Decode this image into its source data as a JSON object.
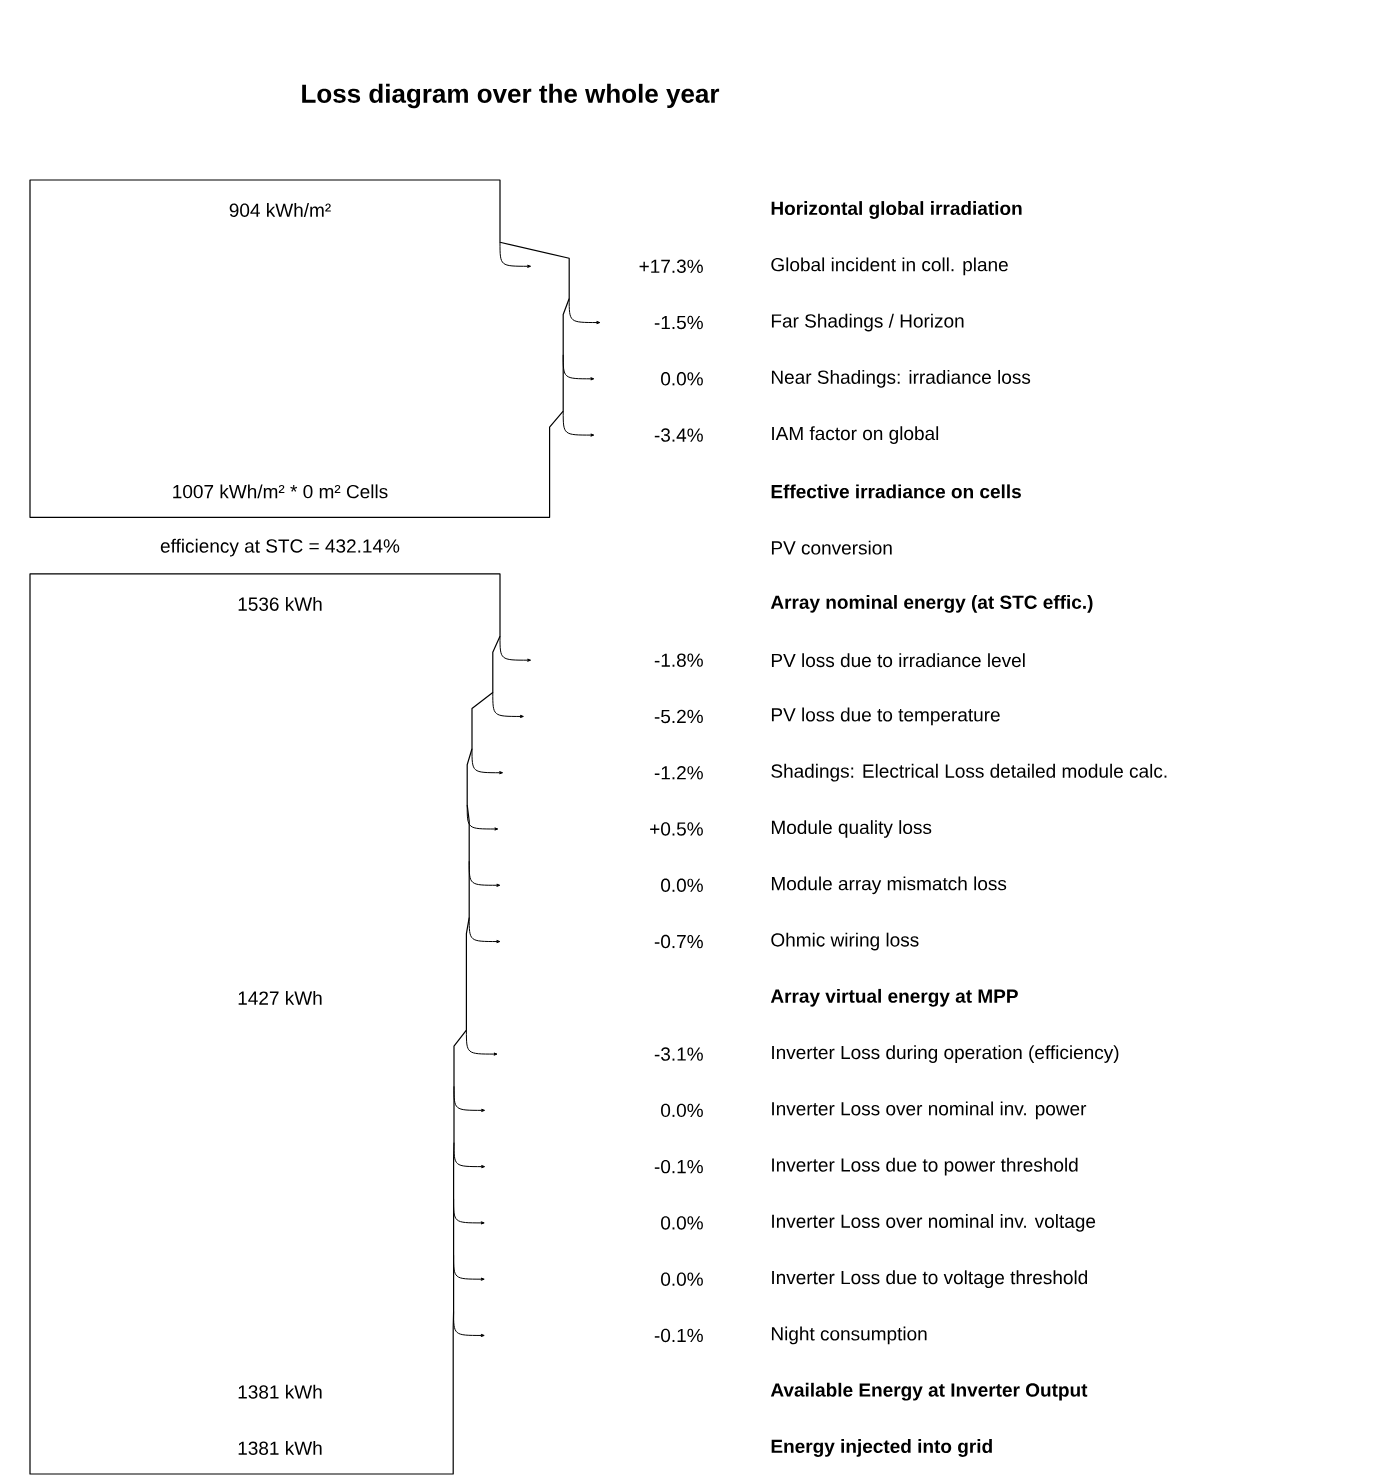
{
  "chart_data": {
    "type": "other",
    "title": "Loss diagram over the whole year",
    "categories": [
      "Horizontal global irradiation",
      "Global incident in coll. plane",
      "Far Shadings / Horizon",
      "Near Shadings: irradiance loss",
      "IAM factor on global",
      "Effective irradiance on cells",
      "PV conversion",
      "Array nominal energy (at STC effic.)",
      "PV loss due to irradiance level",
      "PV loss due to temperature",
      "Shadings: Electrical Loss detailed module calc.",
      "Module quality loss",
      "Module array mismatch loss",
      "Ohmic wiring loss",
      "Array virtual energy at MPP",
      "Inverter Loss during operation (efficiency)",
      "Inverter Loss over nominal inv. power",
      "Inverter Loss due to power threshold",
      "Inverter Loss over nominal inv. voltage",
      "Inverter Loss due to voltage threshold",
      "Night consumption",
      "Available Energy at Inverter Output",
      "Energy injected into grid"
    ],
    "values": [
      null,
      17.3,
      -1.5,
      0.0,
      -3.4,
      null,
      null,
      null,
      -1.8,
      -5.2,
      -1.2,
      0.5,
      0.0,
      -0.7,
      null,
      -3.1,
      0.0,
      -0.1,
      0.0,
      0.0,
      -0.1,
      null,
      null
    ],
    "value_labels": [
      "904 kWh/m²",
      "+17.3%",
      "-1.5%",
      "0.0%",
      "-3.4%",
      "1007 kWh/m² * 0 m² Cells",
      "efficiency at STC = 432.14%",
      "1536 kWh",
      "-1.8%",
      "-5.2%",
      "-1.2%",
      "+0.5%",
      "0.0%",
      "-0.7%",
      "1427 kWh",
      "-3.1%",
      "0.0%",
      "-0.1%",
      "0.0%",
      "0.0%",
      "-0.1%",
      "1381 kWh",
      "1381 kWh"
    ]
  }
}
